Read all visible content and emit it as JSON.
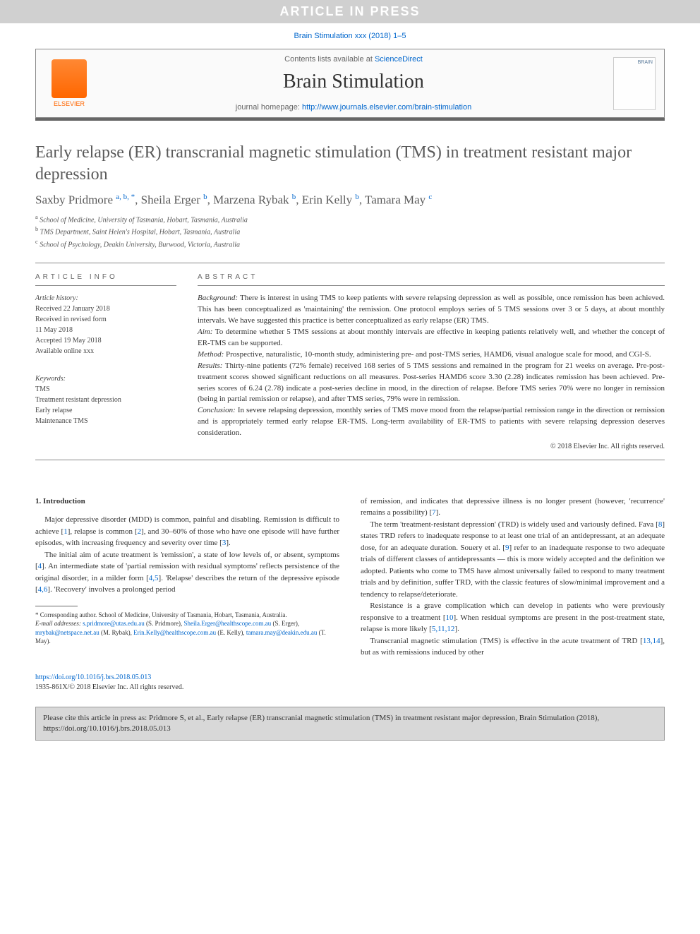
{
  "banner": "ARTICLE IN PRESS",
  "journal_ref": "Brain Stimulation xxx (2018) 1–5",
  "header": {
    "contents_prefix": "Contents lists available at ",
    "contents_link": "ScienceDirect",
    "journal_name": "Brain Stimulation",
    "homepage_prefix": "journal homepage: ",
    "homepage_url": "http://www.journals.elsevier.com/brain-stimulation",
    "publisher": "ELSEVIER",
    "cover_text": "BRAIN"
  },
  "title": "Early relapse (ER) transcranial magnetic stimulation (TMS) in treatment resistant major depression",
  "authors_html": "Saxby Pridmore <sup>a, b, *</sup>, Sheila Erger <sup>b</sup>, Marzena Rybak <sup>b</sup>, Erin Kelly <sup>b</sup>, Tamara May <sup>c</sup>",
  "affiliations": [
    "a School of Medicine, University of Tasmania, Hobart, Tasmania, Australia",
    "b TMS Department, Saint Helen's Hospital, Hobart, Tasmania, Australia",
    "c School of Psychology, Deakin University, Burwood, Victoria, Australia"
  ],
  "article_info_heading": "ARTICLE INFO",
  "abstract_heading": "ABSTRACT",
  "history": {
    "label": "Article history:",
    "lines": [
      "Received 22 January 2018",
      "Received in revised form",
      "11 May 2018",
      "Accepted 19 May 2018",
      "Available online xxx"
    ]
  },
  "keywords": {
    "label": "Keywords:",
    "items": [
      "TMS",
      "Treatment resistant depression",
      "Early relapse",
      "Maintenance TMS"
    ]
  },
  "abstract": {
    "background_label": "Background:",
    "background": " There is interest in using TMS to keep patients with severe relapsing depression as well as possible, once remission has been achieved. This has been conceptualized as 'maintaining' the remission. One protocol employs series of 5 TMS sessions over 3 or 5 days, at about monthly intervals. We have suggested this practice is better conceptualized as early relapse (ER) TMS.",
    "aim_label": "Aim:",
    "aim": " To determine whether 5 TMS sessions at about monthly intervals are effective in keeping patients relatively well, and whether the concept of ER-TMS can be supported.",
    "method_label": "Method:",
    "method": " Prospective, naturalistic, 10-month study, administering pre- and post-TMS series, HAMD6, visual analogue scale for mood, and CGI-S.",
    "results_label": "Results:",
    "results": " Thirty-nine patients (72% female) received 168 series of 5 TMS sessions and remained in the program for 21 weeks on average. Pre-post-treatment scores showed significant reductions on all measures. Post-series HAMD6 score 3.30 (2.28) indicates remission has been achieved. Pre-series scores of 6.24 (2.78) indicate a post-series decline in mood, in the direction of relapse. Before TMS series 70% were no longer in remission (being in partial remission or relapse), and after TMS series, 79% were in remission.",
    "conclusion_label": "Conclusion:",
    "conclusion": " In severe relapsing depression, monthly series of TMS move mood from the relapse/partial remission range in the direction or remission and is appropriately termed early relapse ER-TMS. Long-term availability of ER-TMS to patients with severe relapsing depression deserves consideration.",
    "copyright": "© 2018 Elsevier Inc. All rights reserved."
  },
  "intro_heading": "1. Introduction",
  "col1": {
    "p1": "Major depressive disorder (MDD) is common, painful and disabling. Remission is difficult to achieve [1], relapse is common [2], and 30–60% of those who have one episode will have further episodes, with increasing frequency and severity over time [3].",
    "p2": "The initial aim of acute treatment is 'remission', a state of low levels of, or absent, symptoms [4]. An intermediate state of 'partial remission with residual symptoms' reflects persistence of the original disorder, in a milder form [4,5]. 'Relapse' describes the return of the depressive episode [4,6]. 'Recovery' involves a prolonged period"
  },
  "col2": {
    "p1": "of remission, and indicates that depressive illness is no longer present (however, 'recurrence' remains a possibility) [7].",
    "p2": "The term 'treatment-resistant depression' (TRD) is widely used and variously defined. Fava [8] states TRD refers to inadequate response to at least one trial of an antidepressant, at an adequate dose, for an adequate duration. Souery et al. [9] refer to an inadequate response to two adequate trials of different classes of antidepressants — this is more widely accepted and the definition we adopted. Patients who come to TMS have almost universally failed to respond to many treatment trials and by definition, suffer TRD, with the classic features of slow/minimal improvement and a tendency to relapse/deteriorate.",
    "p3": "Resistance is a grave complication which can develop in patients who were previously responsive to a treatment [10]. When residual symptoms are present in the post-treatment state, relapse is more likely [5,11,12].",
    "p4": "Transcranial magnetic stimulation (TMS) is effective in the acute treatment of TRD [13,14], but as with remissions induced by other"
  },
  "footnotes": {
    "corresponding": "* Corresponding author. School of Medicine, University of Tasmania, Hobart, Tasmania, Australia.",
    "email_label": "E-mail addresses:",
    "emails_html": " s.pridmore@utas.edu.au (S. Pridmore), Sheila.Erger@healthscope.com.au (S. Erger), mrybak@netspace.net.au (M. Rybak), Erin.Kelly@healthscope.com.au (E. Kelly), tamara.may@deakin.edu.au (T. May)."
  },
  "doi": {
    "url": "https://doi.org/10.1016/j.brs.2018.05.013",
    "issn_line": "1935-861X/© 2018 Elsevier Inc. All rights reserved."
  },
  "citebox": "Please cite this article in press as: Pridmore S, et al., Early relapse (ER) transcranial magnetic stimulation (TMS) in treatment resistant major depression, Brain Stimulation (2018), https://doi.org/10.1016/j.brs.2018.05.013"
}
